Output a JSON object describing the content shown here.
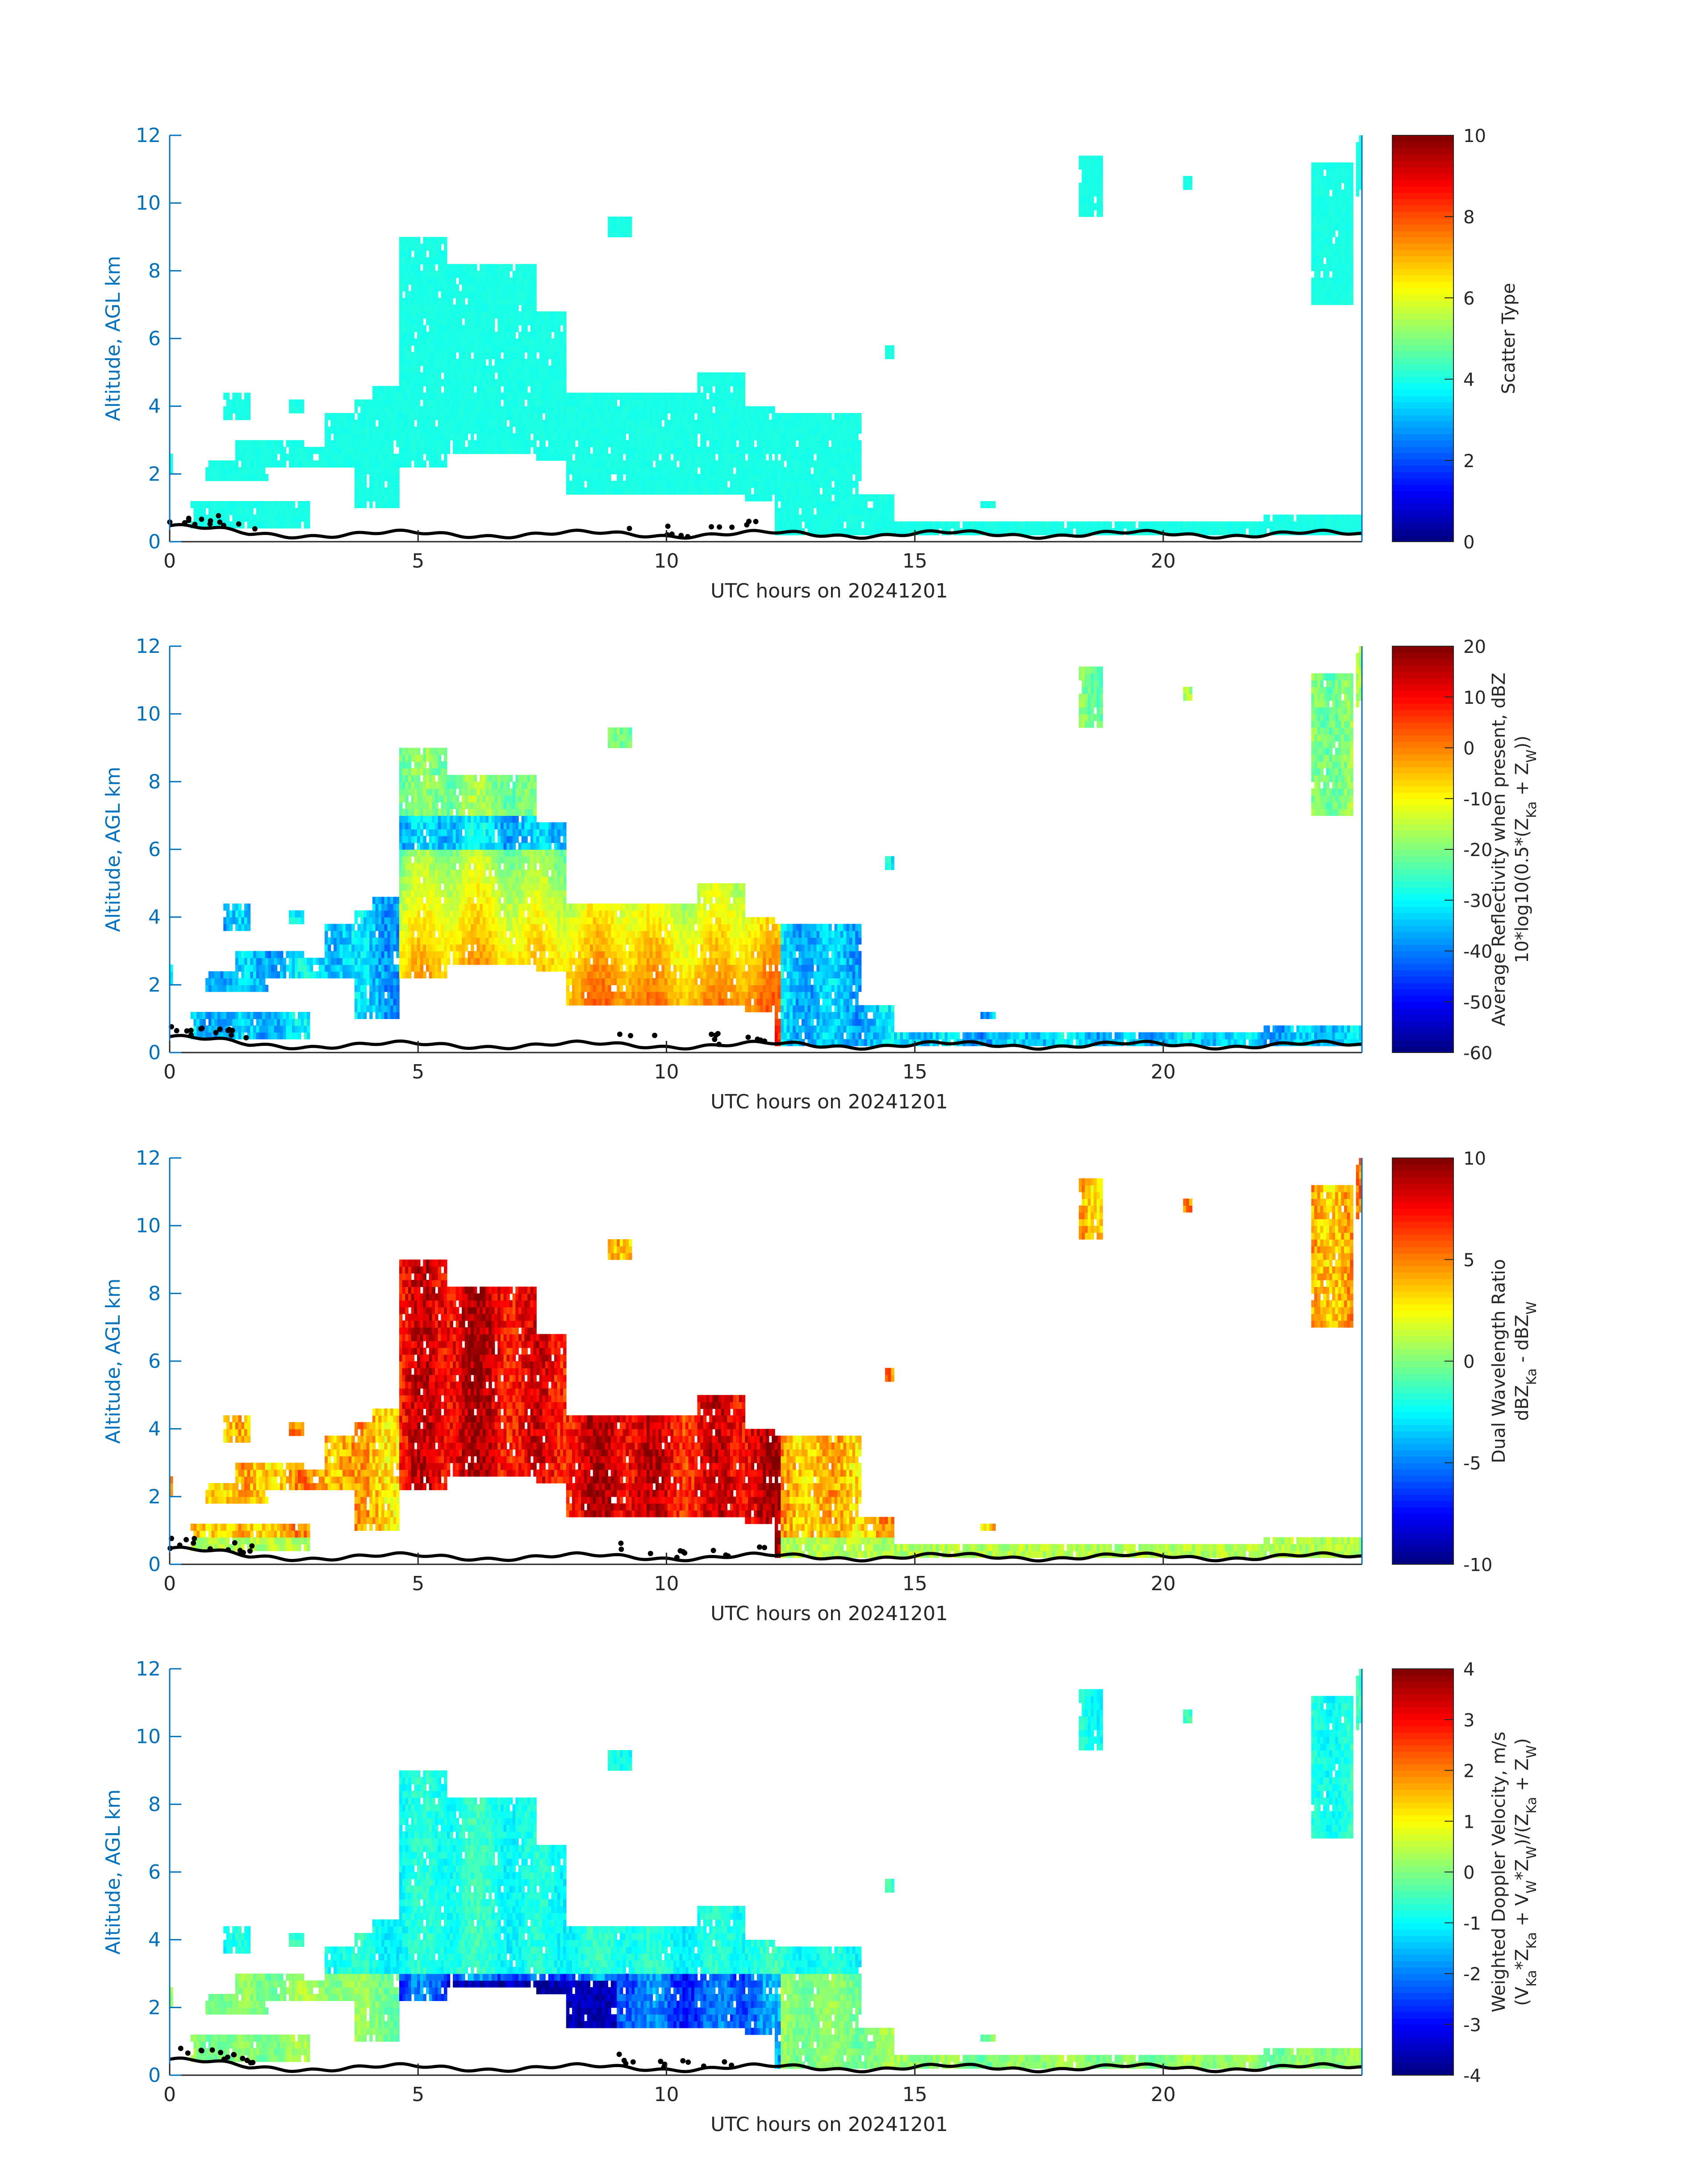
{
  "chart_data": [
    {
      "type": "heatmap",
      "title": "",
      "xlabel": "UTC hours on 20241201",
      "ylabel": "Altitude, AGL km",
      "xlim": [
        0,
        24
      ],
      "ylim": [
        0,
        12
      ],
      "xticks": [
        0,
        5,
        10,
        15,
        20
      ],
      "yticks": [
        0,
        2,
        4,
        6,
        8,
        10,
        12
      ],
      "colorbar": {
        "label_lines": [
          "Scatter Type"
        ],
        "range": [
          0,
          10
        ],
        "ticks": [
          0,
          2,
          4,
          6,
          8,
          10
        ],
        "colormap": "jet"
      },
      "field": "scatter",
      "ground_trace": "black"
    },
    {
      "type": "heatmap",
      "title": "",
      "xlabel": "UTC hours on 20241201",
      "ylabel": "Altitude, AGL km",
      "xlim": [
        0,
        24
      ],
      "ylim": [
        0,
        12
      ],
      "xticks": [
        0,
        5,
        10,
        15,
        20
      ],
      "yticks": [
        0,
        2,
        4,
        6,
        8,
        10,
        12
      ],
      "colorbar": {
        "label_lines": [
          "Average Reflectivity when present, dBZ",
          "10*log10(0.5*(Z_Ka + Z_W))"
        ],
        "range": [
          -60,
          20
        ],
        "ticks": [
          -60,
          -50,
          -40,
          -30,
          -20,
          -10,
          0,
          10,
          20
        ],
        "colormap": "jet"
      },
      "field": "reflectivity",
      "ground_trace": "black"
    },
    {
      "type": "heatmap",
      "title": "",
      "xlabel": "UTC hours on 20241201",
      "ylabel": "Altitude, AGL km",
      "xlim": [
        0,
        24
      ],
      "ylim": [
        0,
        12
      ],
      "xticks": [
        0,
        5,
        10,
        15,
        20
      ],
      "yticks": [
        0,
        2,
        4,
        6,
        8,
        10,
        12
      ],
      "colorbar": {
        "label_lines": [
          "Dual Wavelength Ratio",
          "dBZ_Ka - dBZ_W"
        ],
        "range": [
          -10,
          10
        ],
        "ticks": [
          -10,
          -5,
          0,
          5,
          10
        ],
        "colormap": "jet"
      },
      "field": "dwr",
      "ground_trace": "black"
    },
    {
      "type": "heatmap",
      "title": "",
      "xlabel": "UTC hours on 20241201",
      "ylabel": "Altitude, AGL km",
      "xlim": [
        0,
        24
      ],
      "ylim": [
        0,
        12
      ],
      "xticks": [
        0,
        5,
        10,
        15,
        20
      ],
      "yticks": [
        0,
        2,
        4,
        6,
        8,
        10,
        12
      ],
      "colorbar": {
        "label_lines": [
          "Weighted Doppler Velocity, m/s",
          "(V_Ka*Z_Ka + V_W*Z_W)/(Z_Ka + Z_W)"
        ],
        "range": [
          -4,
          4
        ],
        "ticks": [
          -4,
          -3,
          -2,
          -1,
          0,
          1,
          2,
          3,
          4
        ],
        "colormap": "jet"
      },
      "field": "velocity",
      "ground_trace": "black"
    }
  ]
}
